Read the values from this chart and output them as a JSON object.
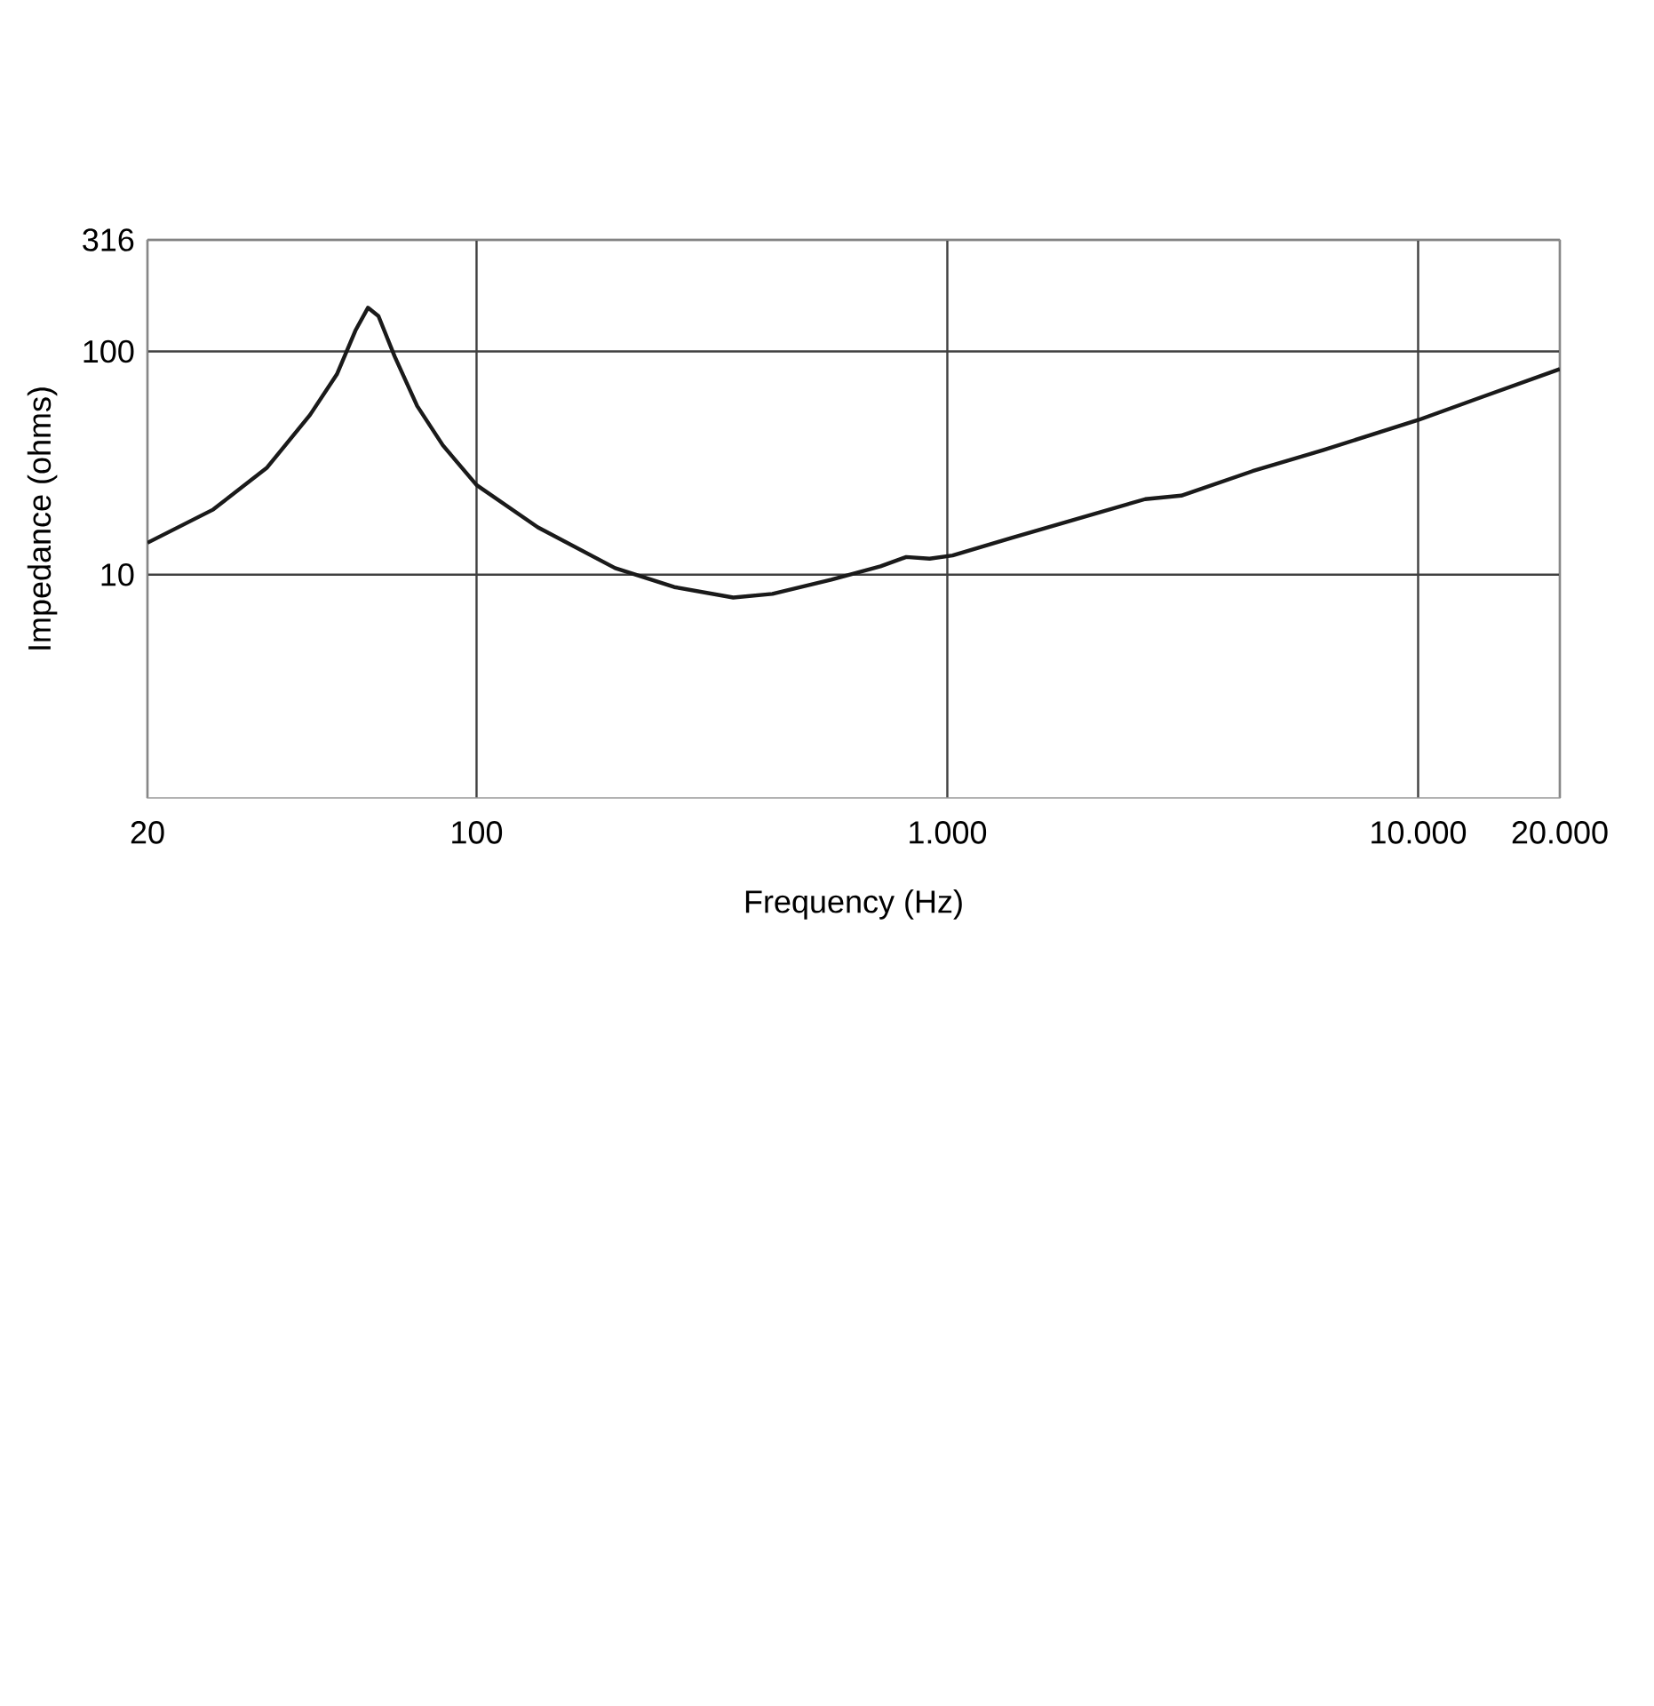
{
  "chart_data": {
    "type": "line",
    "xlabel": "Frequency (Hz)",
    "ylabel": "Impedance (ohms)",
    "log": "xy",
    "grid": true,
    "color": "#1a1a1a",
    "xlim": [
      20,
      20000
    ],
    "ylim": [
      1,
      316
    ],
    "xticks": [
      20,
      100,
      {
        "value": 1000,
        "label": "1.000"
      },
      {
        "value": 10000,
        "label": "10.000"
      },
      {
        "value": 20000,
        "label": "20.000"
      }
    ],
    "yticks": [
      10,
      100,
      316
    ],
    "x": [
      20,
      27.6,
      35.9,
      44.3,
      50.5,
      55.3,
      58.8,
      61.9,
      67,
      74.8,
      84.8,
      100,
      135,
      197,
      263,
      351,
      425,
      567,
      721,
      818,
      917,
      1026,
      1369,
      1854,
      2632,
      3140,
      4450,
      6300,
      10000,
      13630,
      20000
    ],
    "values": [
      13.9,
      19.6,
      30.2,
      52,
      79,
      124,
      157,
      144,
      95,
      57,
      38,
      25.2,
      16.3,
      10.7,
      8.8,
      7.9,
      8.2,
      9.5,
      10.9,
      12.0,
      11.8,
      12.2,
      14.6,
      17.6,
      21.8,
      22.6,
      29.1,
      36.2,
      49.3,
      62.4,
      83.4
    ]
  }
}
